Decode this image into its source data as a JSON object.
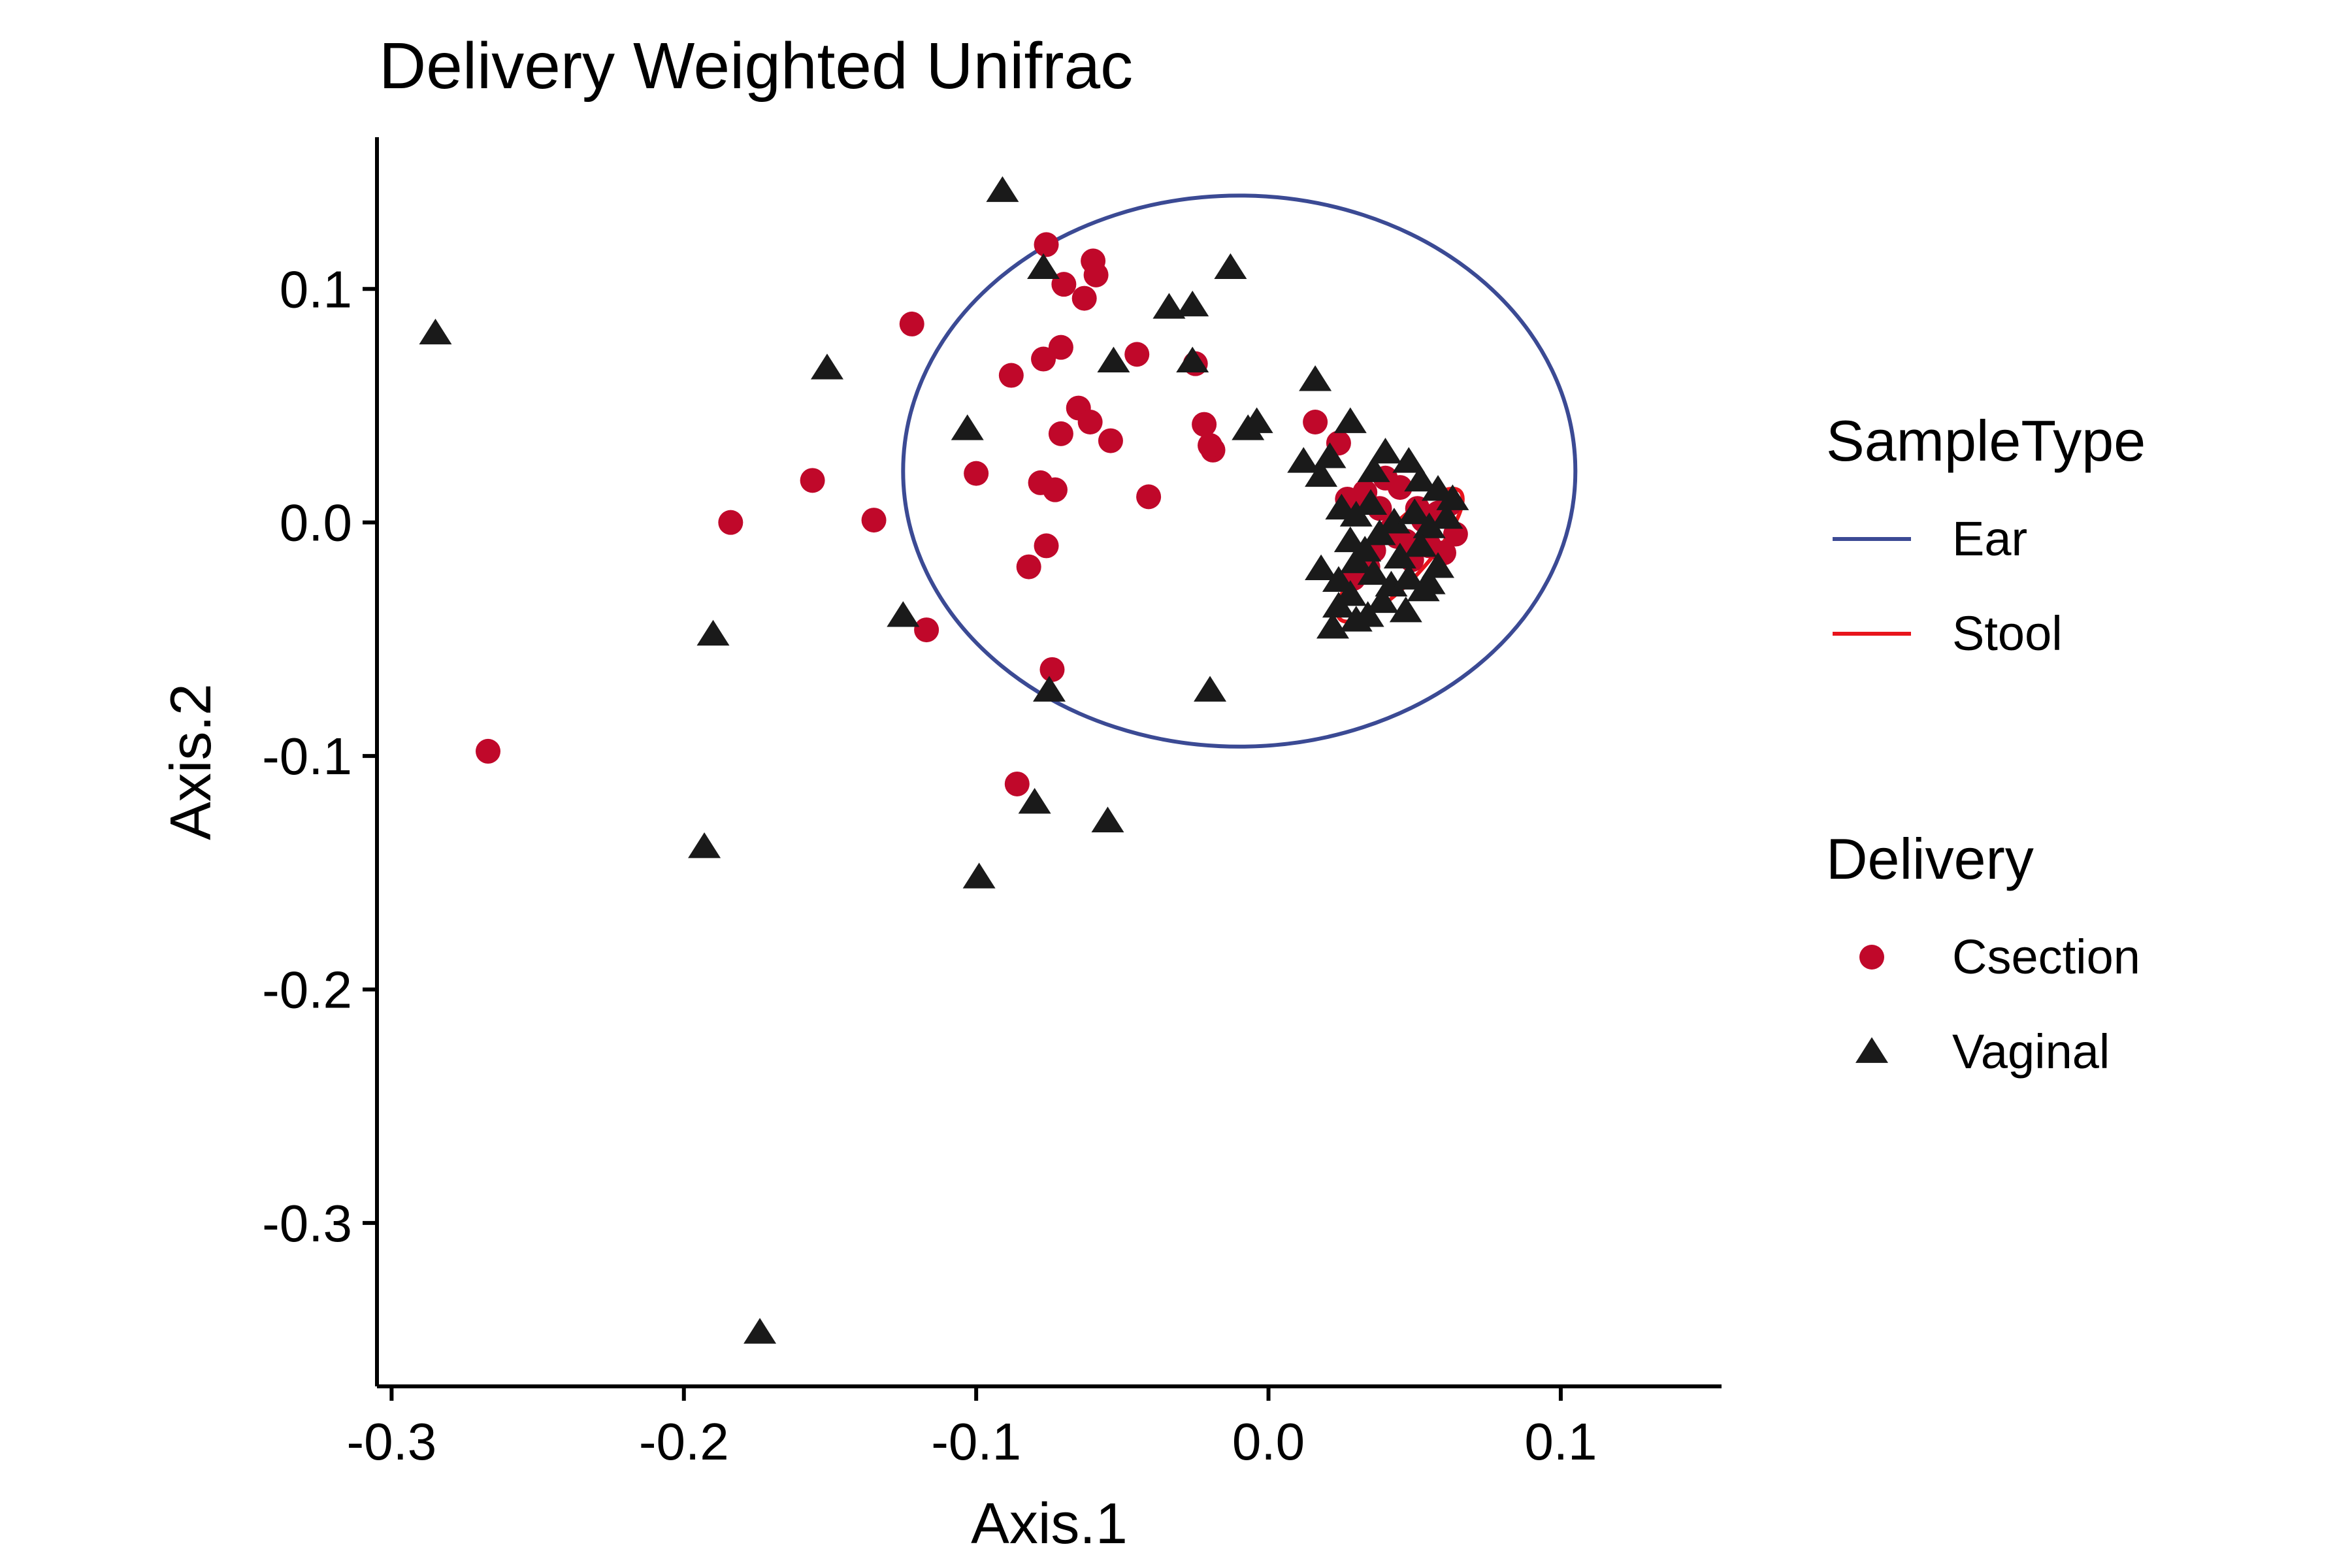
{
  "chart_data": {
    "type": "scatter",
    "title": "Delivery Weighted Unifrac",
    "xlabel": "Axis.1",
    "ylabel": "Axis.2",
    "xlim": [
      -0.305,
      0.155
    ],
    "ylim": [
      -0.37,
      0.165
    ],
    "x_ticks": [
      -0.3,
      -0.2,
      -0.1,
      0.0,
      0.1
    ],
    "x_tick_labels": [
      "-0.3",
      "-0.2",
      "-0.1",
      "0.0",
      "0.1"
    ],
    "y_ticks": [
      0.1,
      0.0,
      -0.1,
      -0.2,
      -0.3
    ],
    "y_tick_labels": [
      "0.1",
      "0.0",
      "-0.1",
      "-0.2",
      "-0.3"
    ],
    "grid": false,
    "legend_position": "right",
    "legends": [
      {
        "title": "SampleType",
        "items": [
          {
            "label": "Ear",
            "color": "#3b4a94",
            "kind": "line"
          },
          {
            "label": "Stool",
            "color": "#e8141c",
            "kind": "line"
          }
        ]
      },
      {
        "title": "Delivery",
        "items": [
          {
            "label": "Csection",
            "color": "#c0082a",
            "kind": "circle"
          },
          {
            "label": "Vaginal",
            "color": "#1a1a1a",
            "kind": "triangle"
          }
        ]
      }
    ],
    "ellipses": [
      {
        "name": "Ear",
        "color": "#3b4a94",
        "cx": -0.01,
        "cy": 0.022,
        "rx": 0.115,
        "ry": 0.118,
        "rotation_deg": 0
      },
      {
        "name": "Stool",
        "color": "#e8141c",
        "cx": 0.045,
        "cy": -0.014,
        "rx": 0.03,
        "ry": 0.011,
        "rotation_deg": -47
      }
    ],
    "series": [
      {
        "name": "Csection",
        "color": "#c0082a",
        "marker": "circle",
        "x": [
          -0.076,
          -0.06,
          -0.059,
          -0.07,
          -0.063,
          -0.122,
          -0.088,
          -0.077,
          -0.071,
          -0.045,
          -0.025,
          -0.065,
          -0.061,
          -0.071,
          -0.054,
          -0.019,
          -0.022,
          -0.02,
          0.016,
          0.024,
          -0.156,
          -0.1,
          -0.078,
          -0.073,
          -0.041,
          -0.184,
          -0.135,
          -0.076,
          -0.082,
          -0.117,
          -0.074,
          -0.267,
          -0.086,
          0.027,
          0.03,
          0.033,
          0.04,
          0.045,
          0.051,
          0.058,
          0.062,
          0.064,
          0.036,
          0.042,
          0.047,
          0.055,
          0.038,
          0.049,
          0.053,
          0.029,
          0.034,
          0.044,
          0.06
        ],
        "y": [
          0.119,
          0.112,
          0.106,
          0.102,
          0.096,
          0.085,
          0.063,
          0.07,
          0.075,
          0.072,
          0.068,
          0.049,
          0.043,
          0.038,
          0.035,
          0.031,
          0.042,
          0.033,
          0.043,
          0.034,
          0.018,
          0.021,
          0.017,
          0.014,
          0.011,
          0.0,
          0.001,
          -0.01,
          -0.019,
          -0.046,
          -0.063,
          -0.098,
          -0.112,
          0.01,
          0.008,
          0.013,
          0.019,
          0.015,
          0.006,
          0.004,
          0.008,
          -0.005,
          -0.012,
          -0.003,
          -0.008,
          -0.01,
          0.006,
          -0.016,
          0.001,
          -0.024,
          -0.019,
          -0.006,
          -0.013
        ]
      },
      {
        "name": "Vaginal",
        "color": "#1a1a1a",
        "marker": "triangle",
        "x": [
          -0.091,
          -0.077,
          -0.013,
          -0.026,
          -0.034,
          -0.026,
          -0.053,
          -0.151,
          -0.103,
          -0.007,
          -0.004,
          0.016,
          0.028,
          -0.285,
          -0.125,
          -0.19,
          -0.075,
          -0.02,
          -0.08,
          -0.055,
          -0.193,
          -0.099,
          -0.174,
          0.012,
          0.018,
          0.021,
          0.036,
          0.04,
          0.048,
          0.052,
          0.058,
          0.063,
          0.025,
          0.03,
          0.035,
          0.043,
          0.05,
          0.055,
          0.061,
          0.028,
          0.033,
          0.038,
          0.045,
          0.052,
          0.058,
          0.018,
          0.024,
          0.03,
          0.036,
          0.042,
          0.048,
          0.053,
          0.024,
          0.028,
          0.034,
          0.039,
          0.022,
          0.03,
          0.047,
          0.055
        ],
        "y": [
          0.142,
          0.109,
          0.109,
          0.093,
          0.092,
          0.069,
          0.069,
          0.066,
          0.04,
          0.04,
          0.043,
          0.061,
          0.043,
          0.081,
          -0.04,
          -0.048,
          -0.072,
          -0.072,
          -0.12,
          -0.128,
          -0.139,
          -0.152,
          -0.347,
          0.026,
          0.02,
          0.028,
          0.022,
          0.03,
          0.026,
          0.018,
          0.014,
          0.01,
          0.006,
          0.003,
          0.008,
          0.0,
          0.004,
          -0.002,
          0.002,
          -0.008,
          -0.012,
          -0.005,
          -0.015,
          -0.01,
          -0.019,
          -0.02,
          -0.025,
          -0.017,
          -0.022,
          -0.027,
          -0.024,
          -0.029,
          -0.036,
          -0.031,
          -0.04,
          -0.034,
          -0.045,
          -0.042,
          -0.038,
          -0.026
        ]
      }
    ]
  }
}
